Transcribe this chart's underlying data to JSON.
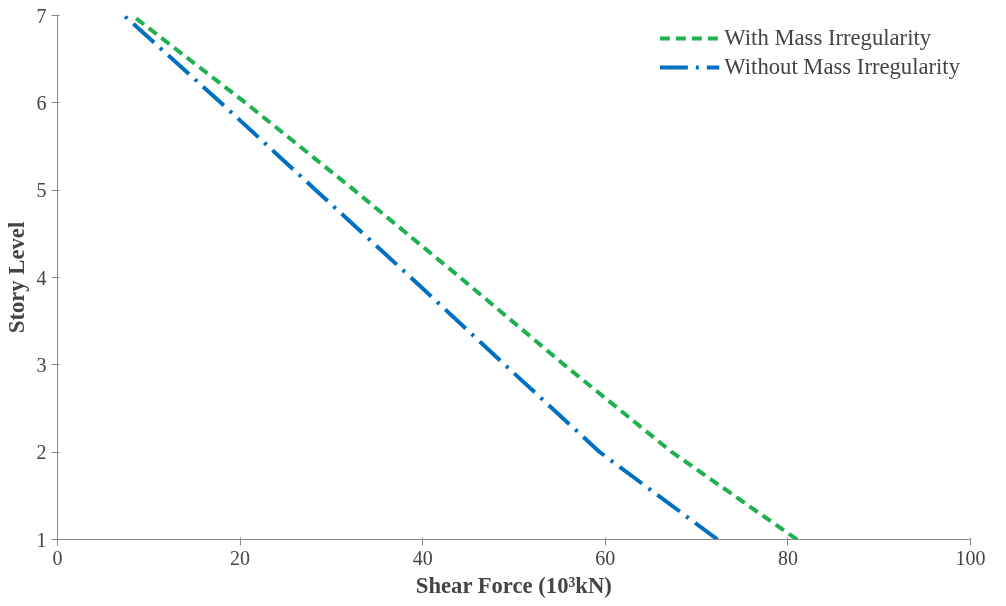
{
  "chart_data": {
    "type": "line",
    "xlabel": "Shear Force (10³kN)",
    "ylabel": "Story Level",
    "xlim": [
      0,
      100
    ],
    "xticks": [
      0,
      20,
      40,
      60,
      80,
      100
    ],
    "ylim": [
      1,
      7
    ],
    "yticks": [
      1,
      2,
      3,
      4,
      5,
      6,
      7
    ],
    "grid": false,
    "legend": "top right",
    "marker": "none",
    "series": [
      {
        "name": "With Mass Irregularity",
        "color": "#1fb14f",
        "line_style": "dashed",
        "x": [
          81.0,
          67.3,
          55.5,
          44.1,
          32.5,
          20.6,
          8.2
        ],
        "values": [
          1,
          2,
          3,
          4,
          5,
          6,
          7
        ]
      },
      {
        "name": "Without Mass Irregularity",
        "color": "#0070c0",
        "line_style": "dashdot",
        "x": [
          72.3,
          59.4,
          49.0,
          38.7,
          28.3,
          17.9,
          7.3
        ],
        "values": [
          1,
          2,
          3,
          4,
          5,
          6,
          7
        ]
      }
    ]
  }
}
